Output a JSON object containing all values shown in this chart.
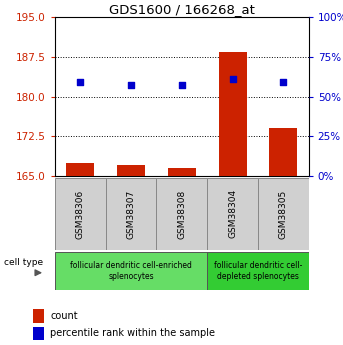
{
  "title": "GDS1600 / 166268_at",
  "samples": [
    "GSM38306",
    "GSM38307",
    "GSM38308",
    "GSM38304",
    "GSM38305"
  ],
  "count_values": [
    167.5,
    167.0,
    166.5,
    188.5,
    174.0
  ],
  "percentile_values": [
    59,
    57,
    57,
    61,
    59
  ],
  "ylim_left": [
    165,
    195
  ],
  "ylim_right": [
    0,
    100
  ],
  "yticks_left": [
    165,
    172.5,
    180,
    187.5,
    195
  ],
  "yticks_right": [
    0,
    25,
    50,
    75,
    100
  ],
  "ytick_labels_right": [
    "0%",
    "25%",
    "50%",
    "75%",
    "100%"
  ],
  "bar_color": "#cc2200",
  "dot_color": "#0000cc",
  "bar_baseline": 165,
  "grid_values": [
    172.5,
    180,
    187.5
  ],
  "group1_label": "follicular dendritic cell-enriched\nsplenocytes",
  "group2_label": "follicular dendritic cell-\ndepleted splenocytes",
  "group1_color": "#66dd66",
  "group2_color": "#33cc33",
  "cell_type_label": "cell type",
  "legend_count_label": "count",
  "legend_pct_label": "percentile rank within the sample",
  "bar_width": 0.55,
  "left_axis_color": "#cc2200",
  "right_axis_color": "#0000cc",
  "sample_box_color": "#d0d0d0",
  "sample_box_edge": "#888888"
}
